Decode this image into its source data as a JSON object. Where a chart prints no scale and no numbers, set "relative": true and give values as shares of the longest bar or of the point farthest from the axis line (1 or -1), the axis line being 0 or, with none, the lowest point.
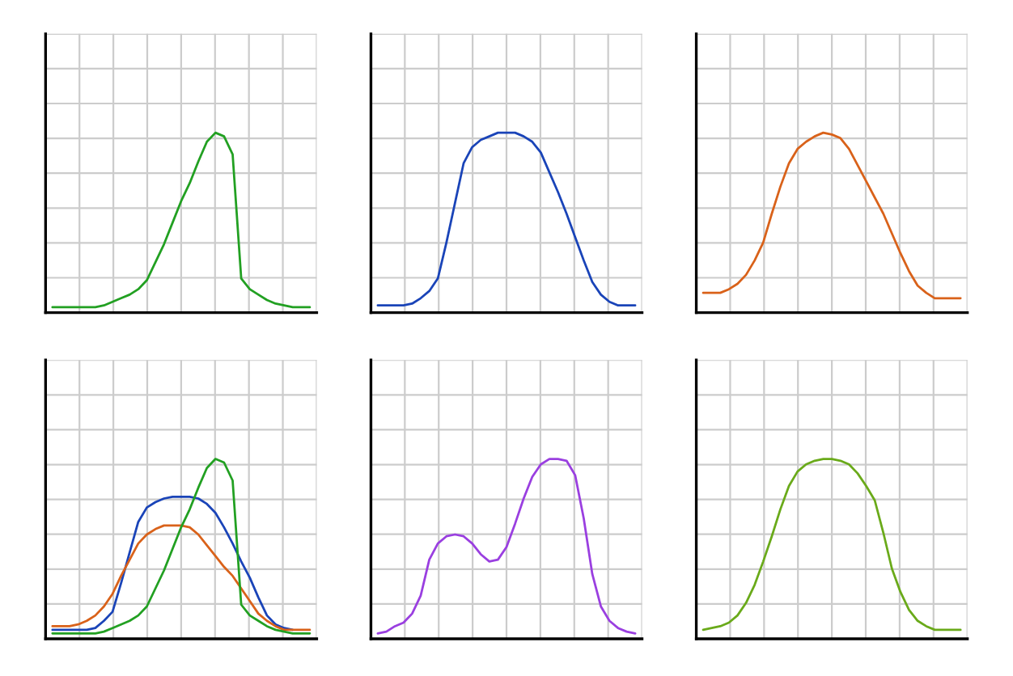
{
  "chart_data": [
    {
      "type": "line",
      "relative": true,
      "grid": true,
      "tick_labels": false,
      "categories": [
        null,
        null,
        null,
        null,
        null,
        null,
        null,
        null,
        null,
        null,
        null,
        null,
        null,
        null,
        null,
        null,
        null,
        null,
        null,
        null,
        null,
        null,
        null,
        null,
        null,
        null,
        null,
        null,
        null,
        null,
        null
      ],
      "series": [
        {
          "color": "#22a022",
          "values": [
            0.03,
            0.03,
            0.03,
            0.03,
            0.03,
            0.03,
            0.04,
            0.06,
            0.08,
            0.1,
            0.13,
            0.18,
            0.28,
            0.38,
            0.5,
            0.62,
            0.72,
            0.84,
            0.95,
            1,
            0.98,
            0.88,
            0.19,
            0.13,
            0.1,
            0.07,
            0.05,
            0.04,
            0.03,
            0.03,
            0.03
          ]
        }
      ]
    },
    {
      "type": "line",
      "relative": true,
      "grid": true,
      "tick_labels": false,
      "categories": [
        null,
        null,
        null,
        null,
        null,
        null,
        null,
        null,
        null,
        null,
        null,
        null,
        null,
        null,
        null,
        null,
        null,
        null,
        null,
        null,
        null,
        null,
        null,
        null,
        null,
        null,
        null,
        null,
        null,
        null,
        null
      ],
      "series": [
        {
          "color": "#1a44b8",
          "values": [
            0.04,
            0.04,
            0.04,
            0.04,
            0.05,
            0.08,
            0.12,
            0.19,
            0.39,
            0.61,
            0.83,
            0.92,
            0.96,
            0.98,
            1,
            1,
            1,
            0.98,
            0.95,
            0.89,
            0.78,
            0.67,
            0.55,
            0.42,
            0.29,
            0.17,
            0.1,
            0.06,
            0.04,
            0.04,
            0.04
          ]
        }
      ]
    },
    {
      "type": "line",
      "relative": true,
      "grid": true,
      "tick_labels": false,
      "categories": [
        null,
        null,
        null,
        null,
        null,
        null,
        null,
        null,
        null,
        null,
        null,
        null,
        null,
        null,
        null,
        null,
        null,
        null,
        null,
        null,
        null,
        null,
        null,
        null,
        null,
        null,
        null,
        null,
        null,
        null,
        null
      ],
      "series": [
        {
          "color": "#d9621a",
          "values": [
            0.11,
            0.11,
            0.11,
            0.13,
            0.16,
            0.21,
            0.29,
            0.39,
            0.55,
            0.7,
            0.83,
            0.91,
            0.95,
            0.98,
            1,
            0.99,
            0.97,
            0.91,
            0.82,
            0.73,
            0.64,
            0.55,
            0.44,
            0.33,
            0.23,
            0.15,
            0.11,
            0.08,
            0.08,
            0.08,
            0.08
          ]
        }
      ]
    },
    {
      "type": "line",
      "relative": true,
      "grid": true,
      "tick_labels": false,
      "categories": [
        null,
        null,
        null,
        null,
        null,
        null,
        null,
        null,
        null,
        null,
        null,
        null,
        null,
        null,
        null,
        null,
        null,
        null,
        null,
        null,
        null,
        null,
        null,
        null,
        null,
        null,
        null,
        null,
        null,
        null,
        null
      ],
      "series": [
        {
          "color": "#1a44b8",
          "values": [
            0.05,
            0.05,
            0.05,
            0.05,
            0.05,
            0.06,
            0.1,
            0.15,
            0.31,
            0.48,
            0.65,
            0.73,
            0.76,
            0.78,
            0.79,
            0.79,
            0.79,
            0.78,
            0.75,
            0.7,
            0.62,
            0.53,
            0.43,
            0.34,
            0.23,
            0.13,
            0.08,
            0.06,
            0.05,
            null,
            null
          ]
        },
        {
          "color": "#d9621a",
          "values": [
            0.07,
            0.07,
            0.07,
            0.08,
            0.1,
            0.13,
            0.18,
            0.25,
            0.35,
            0.44,
            0.53,
            0.58,
            0.61,
            0.63,
            0.63,
            0.63,
            0.62,
            0.58,
            0.52,
            0.46,
            0.4,
            0.35,
            0.28,
            0.21,
            0.14,
            0.1,
            0.07,
            0.05,
            0.05,
            0.05,
            0.05
          ]
        },
        {
          "color": "#22a022",
          "values": [
            0.03,
            0.03,
            0.03,
            0.03,
            0.03,
            0.03,
            0.04,
            0.06,
            0.08,
            0.1,
            0.13,
            0.18,
            0.28,
            0.38,
            0.5,
            0.62,
            0.72,
            0.84,
            0.95,
            1,
            0.98,
            0.88,
            0.19,
            0.13,
            0.1,
            0.07,
            0.05,
            0.04,
            0.03,
            0.03,
            0.03
          ]
        }
      ]
    },
    {
      "type": "line",
      "relative": true,
      "grid": true,
      "tick_labels": false,
      "categories": [
        null,
        null,
        null,
        null,
        null,
        null,
        null,
        null,
        null,
        null,
        null,
        null,
        null,
        null,
        null,
        null,
        null,
        null,
        null,
        null,
        null,
        null,
        null,
        null,
        null,
        null,
        null,
        null,
        null,
        null,
        null
      ],
      "series": [
        {
          "color": "#9a3fe0",
          "values": [
            0.03,
            0.04,
            0.07,
            0.09,
            0.14,
            0.24,
            0.44,
            0.53,
            0.57,
            0.58,
            0.57,
            0.53,
            0.47,
            0.43,
            0.44,
            0.51,
            0.64,
            0.78,
            0.9,
            0.97,
            1,
            1,
            0.99,
            0.91,
            0.67,
            0.36,
            0.18,
            0.1,
            0.06,
            0.04,
            0.03
          ]
        }
      ]
    },
    {
      "type": "line",
      "relative": true,
      "grid": true,
      "tick_labels": false,
      "categories": [
        null,
        null,
        null,
        null,
        null,
        null,
        null,
        null,
        null,
        null,
        null,
        null,
        null,
        null,
        null,
        null,
        null,
        null,
        null,
        null,
        null,
        null,
        null,
        null,
        null,
        null,
        null,
        null,
        null,
        null,
        null
      ],
      "series": [
        {
          "color": "#6aaa1a",
          "values": [
            0.05,
            0.06,
            0.07,
            0.09,
            0.13,
            0.2,
            0.3,
            0.43,
            0.57,
            0.72,
            0.85,
            0.93,
            0.97,
            0.99,
            1,
            1,
            0.99,
            0.97,
            0.92,
            0.85,
            0.77,
            0.59,
            0.39,
            0.26,
            0.16,
            0.1,
            0.07,
            0.05,
            0.05,
            0.05,
            0.05
          ]
        }
      ]
    }
  ]
}
